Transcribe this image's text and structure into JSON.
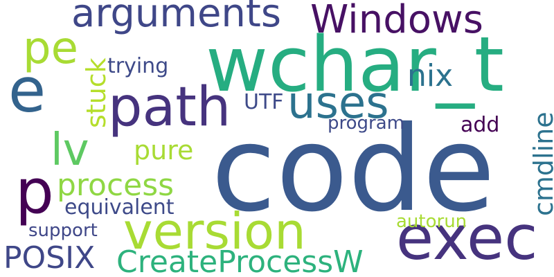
{
  "words": [
    {
      "text": "code",
      "color": "#3b5a8e"
    },
    {
      "text": "wchar_t",
      "color": "#26ad81"
    },
    {
      "text": "exec",
      "color": "#46337e"
    },
    {
      "text": "path",
      "color": "#46337e"
    },
    {
      "text": "version",
      "color": "#a8db34"
    },
    {
      "text": "e",
      "color": "#33638d"
    },
    {
      "text": "p",
      "color": "#440154"
    },
    {
      "text": "uses",
      "color": "#2c728e"
    },
    {
      "text": "pe",
      "color": "#a8db34"
    },
    {
      "text": "arguments",
      "color": "#3f4788"
    },
    {
      "text": "Windows",
      "color": "#471164"
    },
    {
      "text": "lv",
      "color": "#5ec962"
    },
    {
      "text": "CreateProcessW",
      "color": "#2db27d"
    },
    {
      "text": "process",
      "color": "#8fd744"
    },
    {
      "text": "POSIX",
      "color": "#3f4788"
    },
    {
      "text": "pure",
      "color": "#a8db34"
    },
    {
      "text": "nix",
      "color": "#2c728e"
    },
    {
      "text": "cmdline",
      "color": "#2c728e"
    },
    {
      "text": "stuck",
      "color": "#b5de2b"
    },
    {
      "text": "equivalent",
      "color": "#3e4a89"
    },
    {
      "text": "trying",
      "color": "#3e4a89"
    },
    {
      "text": "UTF",
      "color": "#3e4a89"
    },
    {
      "text": "program",
      "color": "#3e4a89"
    },
    {
      "text": "add",
      "color": "#440154"
    },
    {
      "text": "support",
      "color": "#3f4788"
    },
    {
      "text": "autorun",
      "color": "#a8db34"
    }
  ]
}
